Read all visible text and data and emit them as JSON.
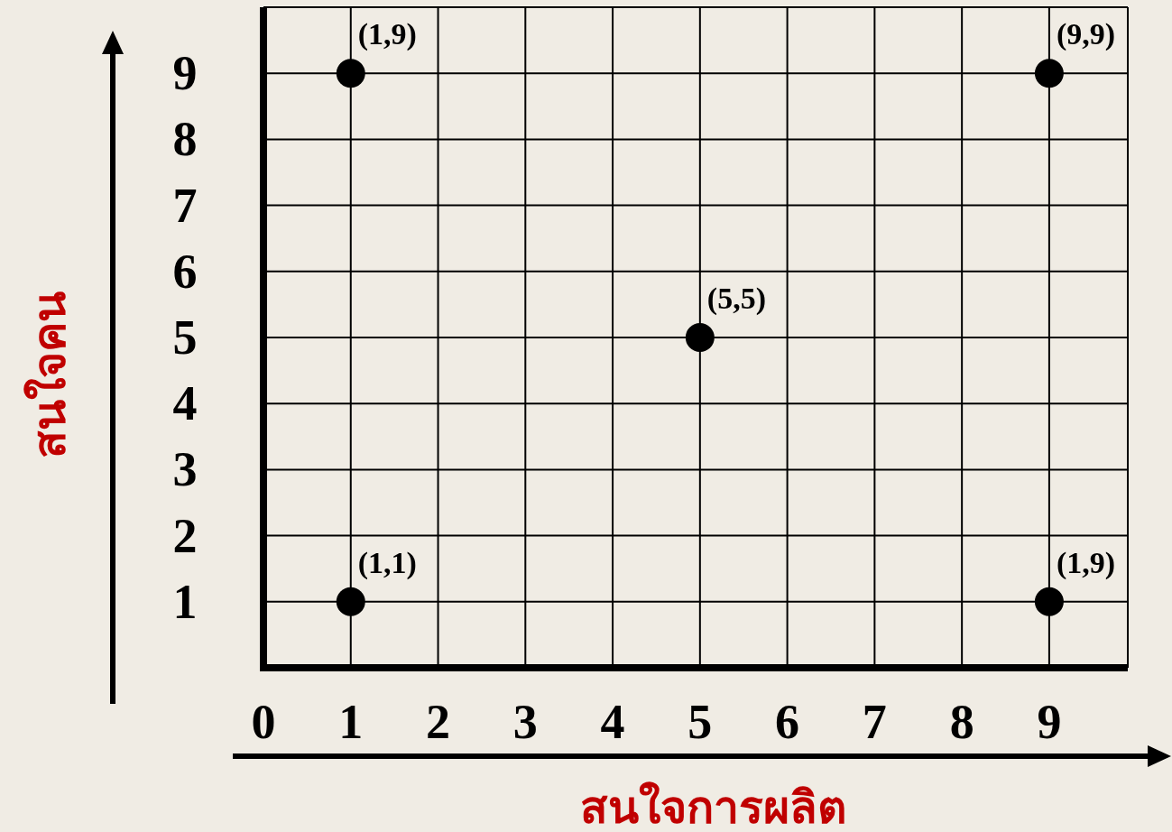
{
  "chart_data": {
    "type": "scatter",
    "xlabel": "สนใจการผลิต",
    "ylabel": "สนใจคน",
    "x": [
      1,
      9,
      5,
      1,
      9
    ],
    "values": [
      9,
      9,
      5,
      1,
      1
    ],
    "annotations": [
      {
        "text": "(1,9)",
        "x": 1,
        "y": 9
      },
      {
        "text": "(9,9)",
        "x": 9,
        "y": 9
      },
      {
        "text": "(5,5)",
        "x": 5,
        "y": 5
      },
      {
        "text": "(1,1)",
        "x": 1,
        "y": 1
      },
      {
        "text": "(1,9)",
        "x": 9,
        "y": 1
      }
    ],
    "color": "#000000",
    "xlim": [
      0,
      9.9
    ],
    "ylim": [
      0,
      10
    ],
    "xticks": [
      0,
      1,
      2,
      3,
      4,
      5,
      6,
      7,
      8,
      9
    ],
    "yticks": [
      1,
      2,
      3,
      4,
      5,
      6,
      7,
      8,
      9
    ],
    "grid": true,
    "marker": "circle"
  }
}
